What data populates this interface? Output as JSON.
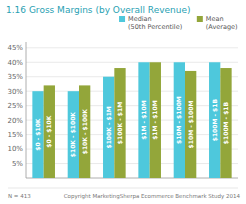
{
  "chart_data": {
    "type": "bar",
    "title": "1.16  Gross Margins (by Overall Revenue)",
    "categories": [
      "$0 - $10K",
      "$10K - $100K",
      "$100K - $1M",
      "$1M - $10M",
      "$10M - $100M",
      "$100M - $1B"
    ],
    "series": [
      {
        "name": "Median\n(50th Percentile)",
        "color": "#4EC8DC",
        "values": [
          30,
          30,
          35,
          40,
          40,
          40
        ]
      },
      {
        "name": "Mean\n(Average)",
        "color": "#93A63A",
        "values": [
          32,
          32,
          38,
          40,
          37,
          38
        ]
      }
    ],
    "ylim": [
      0,
      47
    ],
    "yticks": [
      {
        "value": 5,
        "label": "5%"
      },
      {
        "value": 10,
        "label": "10%"
      },
      {
        "value": 15,
        "label": "15%"
      },
      {
        "value": 20,
        "label": "20%"
      },
      {
        "value": 25,
        "label": "25%"
      },
      {
        "value": 30,
        "label": "30%"
      },
      {
        "value": 35,
        "label": "35%"
      },
      {
        "value": 40,
        "label": "40%"
      },
      {
        "value": 45,
        "label": "45%"
      }
    ],
    "grid": true,
    "legend": "upper right",
    "tick_labels": "y",
    "annotations": [
      "N = 413",
      "Copyright  MarketingSherpa Ecommerce Benchmark Study 2014"
    ]
  }
}
